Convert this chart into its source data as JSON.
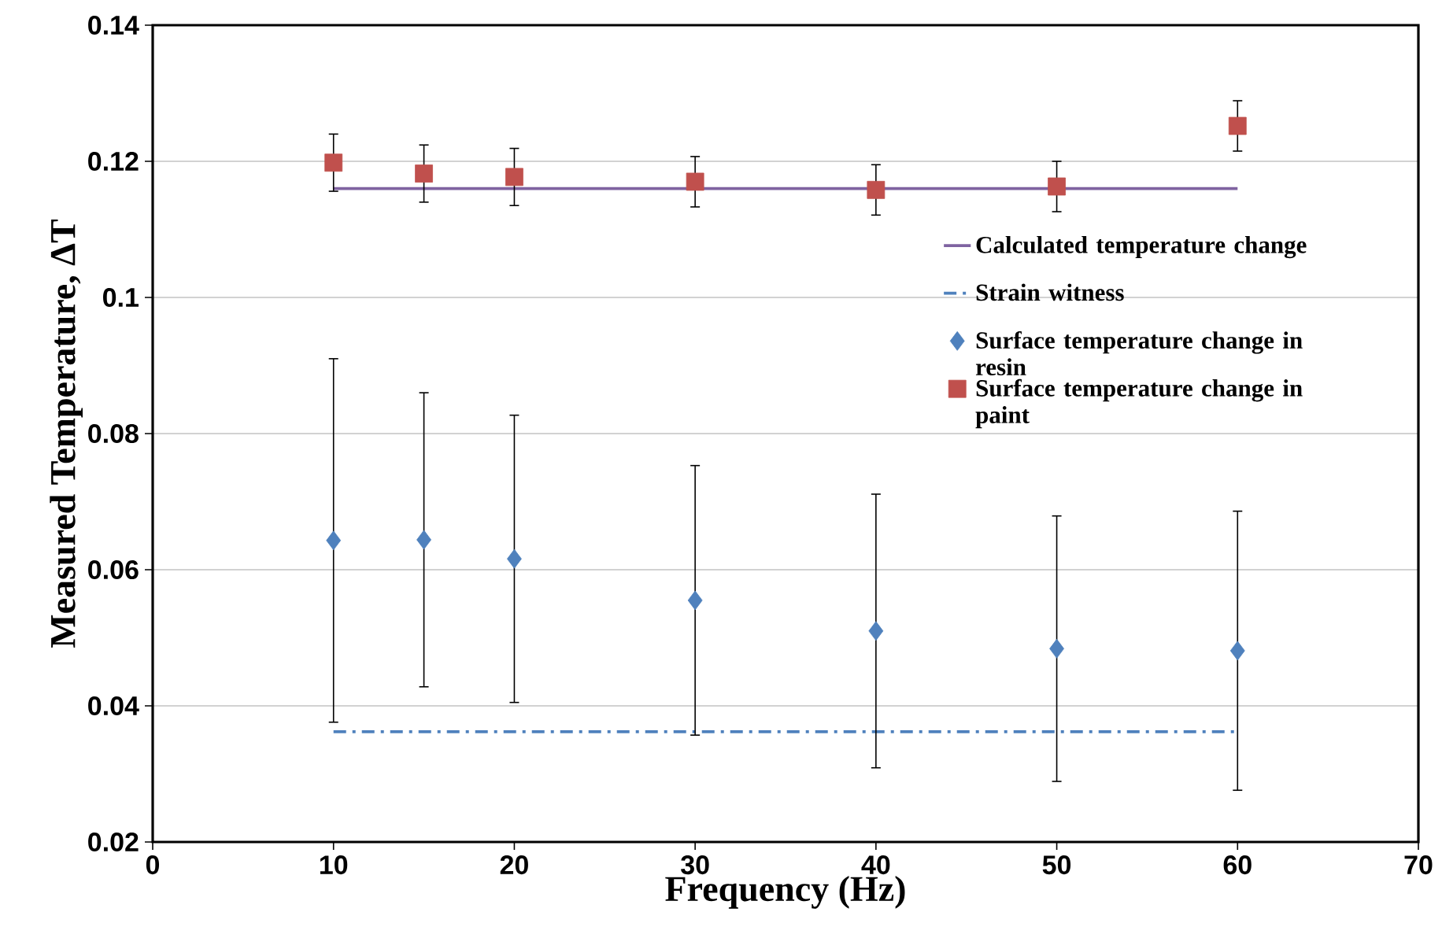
{
  "chart_data": {
    "type": "scatter",
    "xlabel": "Frequency (Hz)",
    "ylabel": "Measured Temperature, ΔT",
    "xlim": [
      0,
      70
    ],
    "xticks": [
      0,
      10,
      20,
      30,
      40,
      50,
      60,
      70
    ],
    "ylim": [
      0.02,
      0.14
    ],
    "yticks": [
      0.02,
      0.04,
      0.06,
      0.08,
      0.1,
      0.12,
      0.14
    ],
    "grid": "y",
    "legend": "right",
    "series": [
      {
        "name": "Calculated temperature change",
        "type": "line",
        "color": "#7f63a1",
        "line_style": "solid",
        "marker": "none",
        "x": [
          10,
          60
        ],
        "values": [
          0.116,
          0.116
        ]
      },
      {
        "name": "Strain witness",
        "type": "line",
        "color": "#4f81bd",
        "line_style": "dashdot",
        "marker": "none",
        "x": [
          10,
          60
        ],
        "values": [
          0.0362,
          0.0362
        ]
      },
      {
        "name": "Surface temperature change in resin",
        "color": "#4f81bd",
        "marker": "diamond",
        "x": [
          10,
          15,
          20,
          30,
          40,
          50,
          60
        ],
        "values": [
          0.0643,
          0.0644,
          0.0616,
          0.0555,
          0.051,
          0.0484,
          0.0481
        ],
        "errors": [
          0.0267,
          0.0216,
          0.0211,
          0.0198,
          0.0201,
          0.0195,
          0.0205
        ]
      },
      {
        "name": "Surface temperature change in paint",
        "color": "#c0504d",
        "marker": "square",
        "x": [
          10,
          15,
          20,
          30,
          40,
          50,
          60
        ],
        "values": [
          0.1198,
          0.1182,
          0.1177,
          0.117,
          0.1158,
          0.1163,
          0.1252
        ],
        "errors": [
          0.0042,
          0.0042,
          0.0042,
          0.0037,
          0.0037,
          0.0037,
          0.0037
        ]
      }
    ]
  }
}
